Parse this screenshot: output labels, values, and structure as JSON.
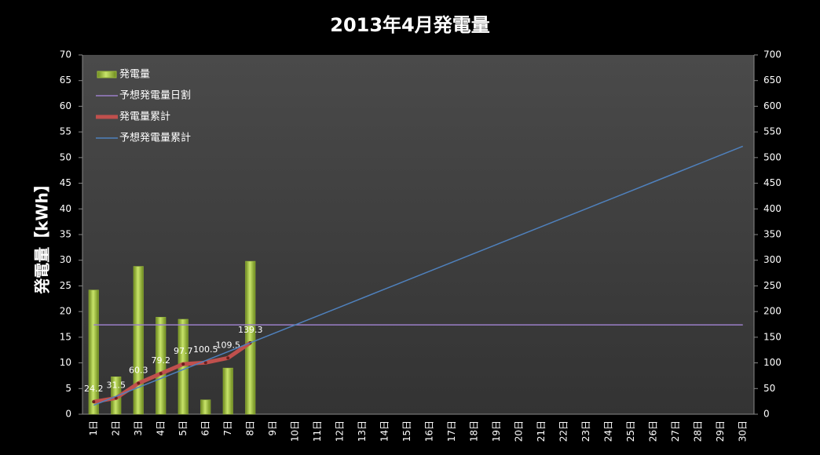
{
  "chart_data": {
    "type": "bar",
    "title": "2013年4月発電量",
    "y_label": "発電量【kWh】",
    "categories": [
      "1日",
      "2日",
      "3日",
      "4日",
      "5日",
      "6日",
      "7日",
      "8日",
      "9日",
      "10日",
      "11日",
      "12日",
      "13日",
      "14日",
      "15日",
      "16日",
      "17日",
      "18日",
      "19日",
      "20日",
      "21日",
      "22日",
      "23日",
      "24日",
      "25日",
      "26日",
      "27日",
      "28日",
      "29日",
      "30日"
    ],
    "series": [
      {
        "name": "発電量",
        "type": "bar",
        "color": "#9bbb3b",
        "axis": "y",
        "values": [
          24.2,
          7.3,
          28.8,
          18.9,
          18.5,
          2.8,
          9.0,
          29.8,
          null,
          null,
          null,
          null,
          null,
          null,
          null,
          null,
          null,
          null,
          null,
          null,
          null,
          null,
          null,
          null,
          null,
          null,
          null,
          null,
          null,
          null
        ]
      },
      {
        "name": "予想発電量日割",
        "type": "line",
        "color": "#9b7fc8",
        "axis": "y",
        "values": [
          17.4,
          17.4,
          17.4,
          17.4,
          17.4,
          17.4,
          17.4,
          17.4,
          17.4,
          17.4,
          17.4,
          17.4,
          17.4,
          17.4,
          17.4,
          17.4,
          17.4,
          17.4,
          17.4,
          17.4,
          17.4,
          17.4,
          17.4,
          17.4,
          17.4,
          17.4,
          17.4,
          17.4,
          17.4,
          17.4
        ]
      },
      {
        "name": "発電量累計",
        "type": "line",
        "color": "#c0504d",
        "axis": "y2",
        "show_labels": true,
        "values": [
          24.2,
          31.5,
          60.3,
          79.2,
          97.7,
          100.5,
          109.5,
          139.3,
          null,
          null,
          null,
          null,
          null,
          null,
          null,
          null,
          null,
          null,
          null,
          null,
          null,
          null,
          null,
          null,
          null,
          null,
          null,
          null,
          null,
          null
        ]
      },
      {
        "name": "予想発電量累計",
        "type": "line",
        "color": "#4f81bd",
        "axis": "y2",
        "values": [
          17.4,
          34.8,
          52.2,
          69.6,
          87,
          104.4,
          121.8,
          139.2,
          156.6,
          174,
          191.4,
          208.8,
          226.2,
          243.6,
          261,
          278.4,
          295.8,
          313.2,
          330.6,
          348,
          365.4,
          382.8,
          400.2,
          417.6,
          435,
          452.4,
          469.8,
          487.2,
          504.6,
          522
        ]
      }
    ],
    "ylim": [
      0,
      70
    ],
    "yticks": [
      0,
      5,
      10,
      15,
      20,
      25,
      30,
      35,
      40,
      45,
      50,
      55,
      60,
      65,
      70
    ],
    "y2lim": [
      0,
      700
    ],
    "y2ticks": [
      0,
      50,
      100,
      150,
      200,
      250,
      300,
      350,
      400,
      450,
      500,
      550,
      600,
      650,
      700
    ],
    "grid": false,
    "legend": "top-left"
  }
}
